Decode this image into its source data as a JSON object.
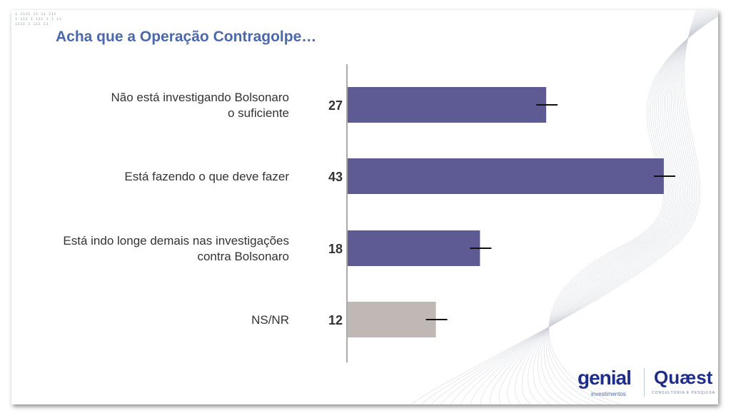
{
  "title": "Acha que a Operação Contragolpe…",
  "dots": [
    "ı ıııı ıı ıı ııı",
    "ı ııı ı ııı ı ı ıı",
    "ıııı ı ııı ıı"
  ],
  "logos": {
    "genial": "genial",
    "genial_sub": "investimentos",
    "quaest": "Quæst",
    "quaest_sub": "CONSULTORIA E PESQUISA"
  },
  "colors": {
    "bar": "#5e5a94",
    "nsnr": "#bfb8b5",
    "title": "#4a68ad"
  },
  "chart_data": {
    "type": "bar",
    "orientation": "horizontal",
    "title": "Acha que a Operação Contragolpe…",
    "categories": [
      [
        "Não está investigando Bolsonaro",
        "o suficiente"
      ],
      [
        "Está fazendo o que deve fazer"
      ],
      [
        "Está indo longe demais nas investigações",
        "contra Bolsonaro"
      ],
      [
        "NS/NR"
      ]
    ],
    "values": [
      27,
      43,
      18,
      12
    ],
    "value_labels": [
      "27",
      "43",
      "18",
      "12"
    ],
    "error_bars": true,
    "xlim": [
      0,
      50
    ],
    "unit": "%"
  }
}
